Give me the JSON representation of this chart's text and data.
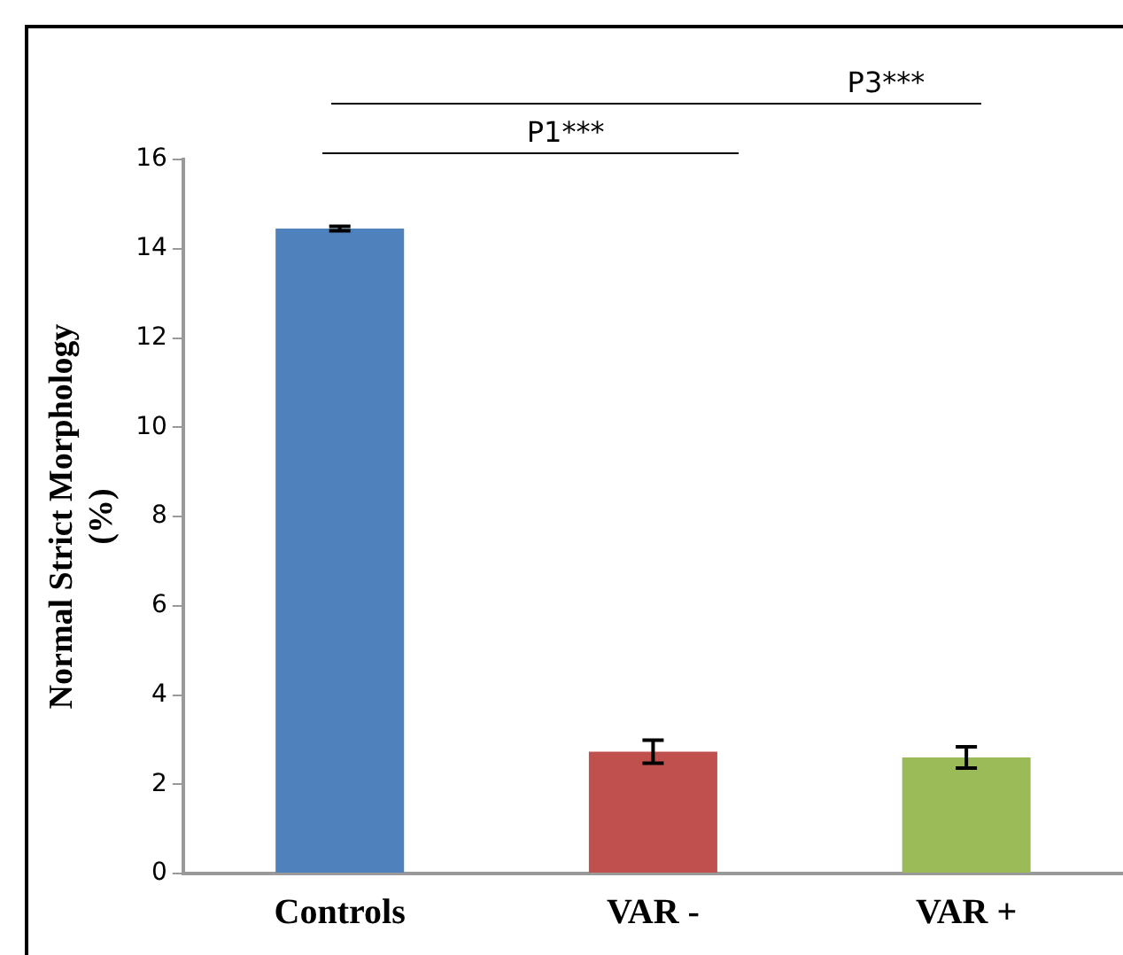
{
  "chart_data": {
    "type": "bar",
    "ylabel": "Normal Strict Morphology\n(%)",
    "categories": [
      "Controls",
      "VAR -",
      "VAR +"
    ],
    "values": [
      14.45,
      2.73,
      2.6
    ],
    "colors": [
      "#4f81bd",
      "#c0504d",
      "#9bbb59"
    ],
    "errors": [
      0.05,
      0.26,
      0.24
    ],
    "ylim": [
      0,
      16
    ],
    "yticks": [
      0,
      2,
      4,
      6,
      8,
      10,
      12,
      14,
      16
    ],
    "grid": false,
    "legend": false,
    "annotations": [
      "P1***",
      "P3***"
    ]
  }
}
